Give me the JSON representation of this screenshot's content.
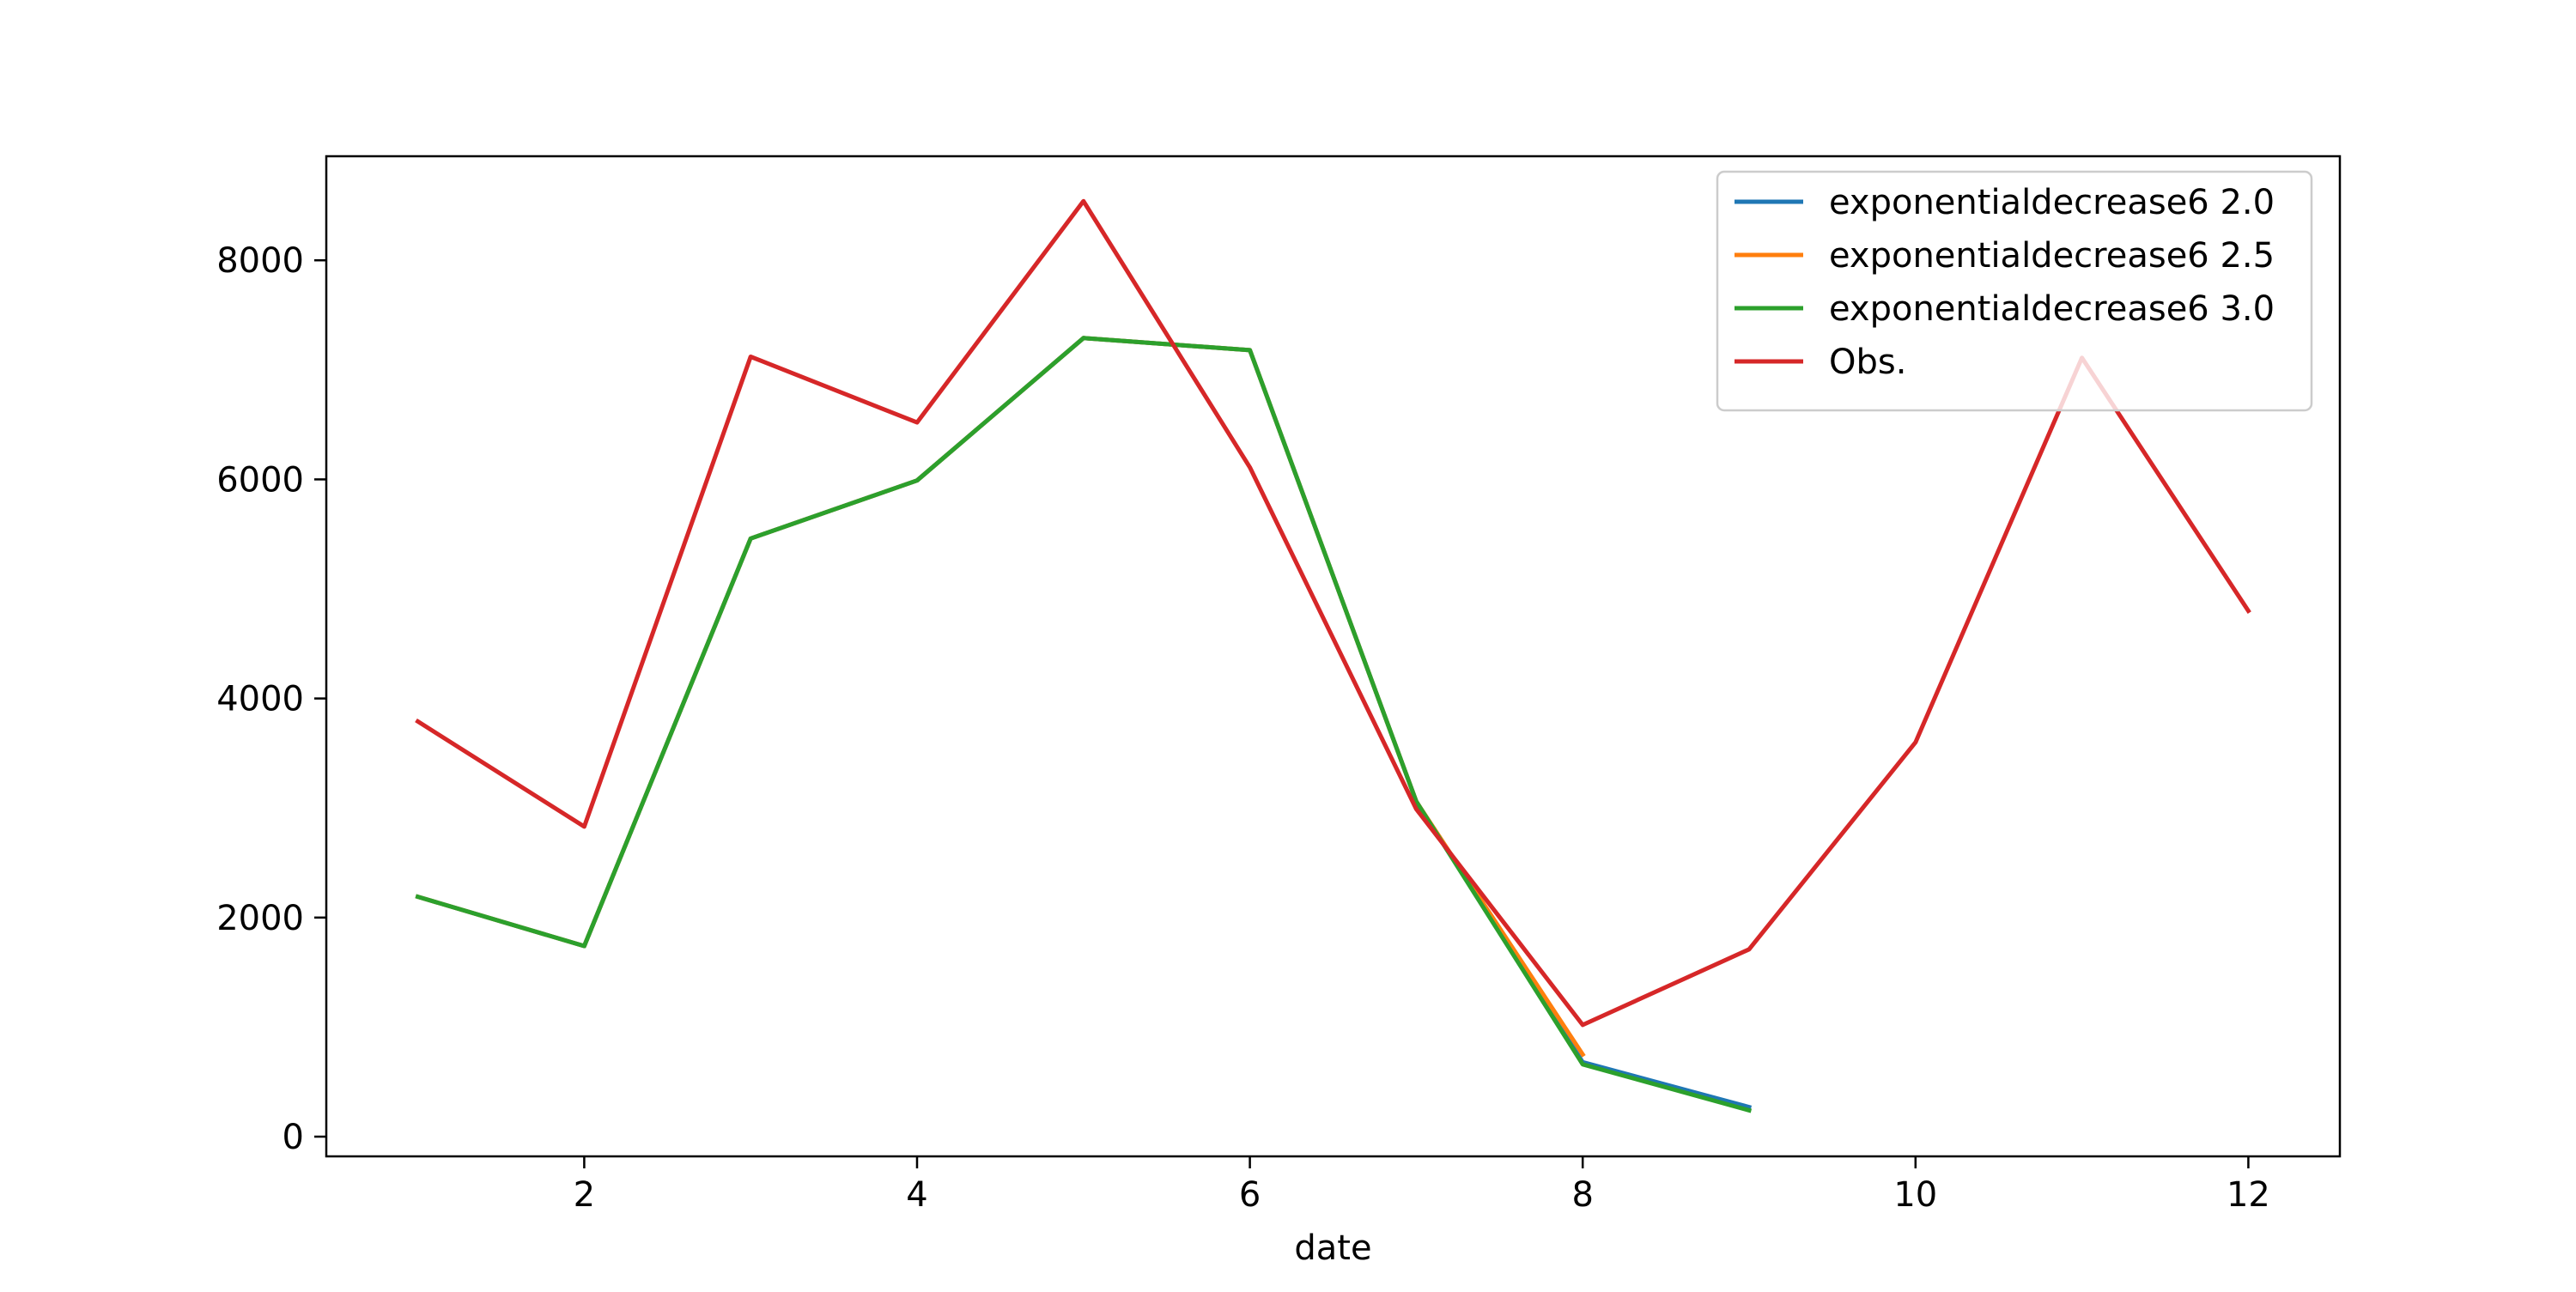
{
  "chart_data": {
    "type": "line",
    "title": "",
    "xlabel": "date",
    "ylabel": "",
    "xlim": [
      0.45,
      12.55
    ],
    "ylim": [
      -180,
      8950
    ],
    "xticks": [
      2,
      4,
      6,
      8,
      10,
      12
    ],
    "yticks": [
      0,
      2000,
      4000,
      6000,
      8000
    ],
    "grid": false,
    "legend_position": "upper-right",
    "series": [
      {
        "name": "exponentialdecrease6 2.0",
        "color": "#1f77b4",
        "x": [
          1,
          2,
          3,
          4,
          5,
          6,
          7,
          8,
          9
        ],
        "y": [
          2190,
          1740,
          5460,
          5990,
          7290,
          7180,
          3060,
          680,
          270
        ]
      },
      {
        "name": "exponentialdecrease6 2.5",
        "color": "#ff7f0e",
        "x": [
          1,
          2,
          3,
          4,
          5,
          6,
          7,
          8
        ],
        "y": [
          2190,
          1740,
          5460,
          5990,
          7290,
          7180,
          3060,
          750
        ]
      },
      {
        "name": "exponentialdecrease6 3.0",
        "color": "#2ca02c",
        "x": [
          1,
          2,
          3,
          4,
          5,
          6,
          7,
          8,
          9
        ],
        "y": [
          2190,
          1740,
          5460,
          5990,
          7290,
          7180,
          3060,
          660,
          240
        ]
      },
      {
        "name": "Obs.",
        "color": "#d62728",
        "x": [
          1,
          2,
          3,
          4,
          5,
          6,
          7,
          8,
          9,
          10,
          11,
          12
        ],
        "y": [
          3790,
          2830,
          7120,
          6520,
          8540,
          6110,
          2990,
          1020,
          1710,
          3600,
          7110,
          4800
        ]
      }
    ]
  }
}
